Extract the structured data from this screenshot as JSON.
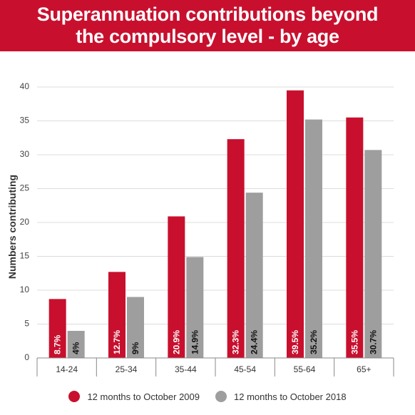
{
  "title": {
    "line1": "Superannuation contributions beyond",
    "line2": "the compulsory level - by age"
  },
  "chart_data": {
    "type": "bar",
    "ylabel": "Numbers contributing",
    "xlabel": "",
    "ylim": [
      0,
      40
    ],
    "yticks": [
      "0",
      "5",
      "10",
      "15",
      "20",
      "25",
      "30",
      "35",
      "40"
    ],
    "grid": true,
    "legend_position": "bottom",
    "categories": [
      "14-24",
      "25-34",
      "35-44",
      "45-54",
      "55-64",
      "65+"
    ],
    "series": [
      {
        "name": "12 months to October 2009",
        "color": "#c8102e",
        "label_color": "#ffffff",
        "values": [
          8.7,
          12.7,
          20.9,
          32.3,
          39.5,
          35.5
        ],
        "labels": [
          "8.7%",
          "12.7%",
          "20.9%",
          "32.3%",
          "39.5%",
          "35.5%"
        ]
      },
      {
        "name": "12 months to October 2018",
        "color": "#9e9e9e",
        "label_color": "#111111",
        "values": [
          4,
          9,
          14.9,
          24.4,
          35.2,
          30.7
        ],
        "labels": [
          "4%",
          "9%",
          "14.9%",
          "24.4%",
          "35.2%",
          "30.7%"
        ]
      }
    ]
  }
}
